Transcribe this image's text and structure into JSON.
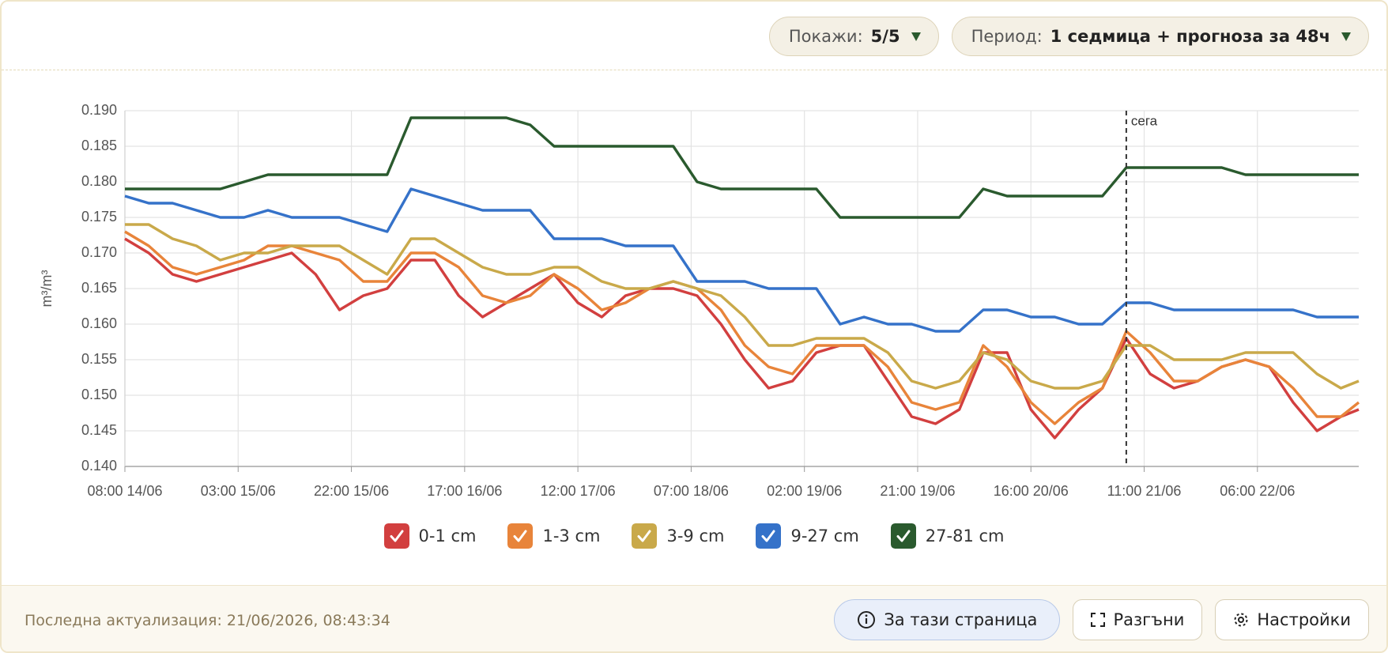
{
  "controls": {
    "show_label": "Покажи:",
    "show_value": "5/5",
    "period_label": "Период:",
    "period_value": "1 седмица + прогноза за 48ч"
  },
  "chart_data": {
    "type": "line",
    "ylabel": "m³/m³",
    "x": [
      0,
      4,
      8,
      12,
      16,
      20,
      24,
      28,
      32,
      36,
      40,
      44,
      48,
      52,
      56,
      60,
      64,
      68,
      72,
      76,
      80,
      84,
      88,
      92,
      96,
      100,
      104,
      108,
      112,
      116,
      120,
      124,
      128,
      132,
      136,
      140,
      144,
      148,
      152,
      156,
      160,
      164,
      168,
      172,
      176,
      180,
      184,
      188,
      192,
      196,
      200,
      204,
      207
    ],
    "xlim": [
      0,
      207
    ],
    "xticks": [
      {
        "value": 0,
        "label": "08:00 14/06"
      },
      {
        "value": 19,
        "label": "03:00 15/06"
      },
      {
        "value": 38,
        "label": "22:00 15/06"
      },
      {
        "value": 57,
        "label": "17:00 16/06"
      },
      {
        "value": 76,
        "label": "12:00 17/06"
      },
      {
        "value": 95,
        "label": "07:00 18/06"
      },
      {
        "value": 114,
        "label": "02:00 19/06"
      },
      {
        "value": 133,
        "label": "21:00 19/06"
      },
      {
        "value": 152,
        "label": "16:00 20/06"
      },
      {
        "value": 171,
        "label": "11:00 21/06"
      },
      {
        "value": 190,
        "label": "06:00 22/06"
      }
    ],
    "ylim": [
      0.14,
      0.19
    ],
    "yticks": [
      {
        "value": 0.14,
        "label": "0.140"
      },
      {
        "value": 0.145,
        "label": "0.145"
      },
      {
        "value": 0.15,
        "label": "0.150"
      },
      {
        "value": 0.155,
        "label": "0.155"
      },
      {
        "value": 0.16,
        "label": "0.160"
      },
      {
        "value": 0.165,
        "label": "0.165"
      },
      {
        "value": 0.17,
        "label": "0.170"
      },
      {
        "value": 0.175,
        "label": "0.175"
      },
      {
        "value": 0.18,
        "label": "0.180"
      },
      {
        "value": 0.185,
        "label": "0.185"
      },
      {
        "value": 0.19,
        "label": "0.190"
      }
    ],
    "grid": true,
    "now_line": {
      "text": "сега",
      "x": 168
    },
    "series": [
      {
        "name": "0-1 cm",
        "color": "#d23f3f",
        "values": [
          0.172,
          0.17,
          0.167,
          0.166,
          0.167,
          0.168,
          0.169,
          0.17,
          0.167,
          0.162,
          0.164,
          0.165,
          0.169,
          0.169,
          0.164,
          0.161,
          0.163,
          0.165,
          0.167,
          0.163,
          0.161,
          0.164,
          0.165,
          0.165,
          0.164,
          0.16,
          0.155,
          0.151,
          0.152,
          0.156,
          0.157,
          0.157,
          0.152,
          0.147,
          0.146,
          0.148,
          0.156,
          0.156,
          0.148,
          0.144,
          0.148,
          0.151,
          0.158,
          0.153,
          0.151,
          0.152,
          0.154,
          0.155,
          0.154,
          0.149,
          0.145,
          0.147,
          0.148
        ]
      },
      {
        "name": "1-3 cm",
        "color": "#e8843a",
        "values": [
          0.173,
          0.171,
          0.168,
          0.167,
          0.168,
          0.169,
          0.171,
          0.171,
          0.17,
          0.169,
          0.166,
          0.166,
          0.17,
          0.17,
          0.168,
          0.164,
          0.163,
          0.164,
          0.167,
          0.165,
          0.162,
          0.163,
          0.165,
          0.166,
          0.165,
          0.162,
          0.157,
          0.154,
          0.153,
          0.157,
          0.157,
          0.157,
          0.154,
          0.149,
          0.148,
          0.149,
          0.157,
          0.154,
          0.149,
          0.146,
          0.149,
          0.151,
          0.159,
          0.156,
          0.152,
          0.152,
          0.154,
          0.155,
          0.154,
          0.151,
          0.147,
          0.147,
          0.149
        ]
      },
      {
        "name": "3-9 cm",
        "color": "#c9a94a",
        "values": [
          0.174,
          0.174,
          0.172,
          0.171,
          0.169,
          0.17,
          0.17,
          0.171,
          0.171,
          0.171,
          0.169,
          0.167,
          0.172,
          0.172,
          0.17,
          0.168,
          0.167,
          0.167,
          0.168,
          0.168,
          0.166,
          0.165,
          0.165,
          0.166,
          0.165,
          0.164,
          0.161,
          0.157,
          0.157,
          0.158,
          0.158,
          0.158,
          0.156,
          0.152,
          0.151,
          0.152,
          0.156,
          0.155,
          0.152,
          0.151,
          0.151,
          0.152,
          0.157,
          0.157,
          0.155,
          0.155,
          0.155,
          0.156,
          0.156,
          0.156,
          0.153,
          0.151,
          0.152
        ]
      },
      {
        "name": "9-27 cm",
        "color": "#3572c9",
        "values": [
          0.178,
          0.177,
          0.177,
          0.176,
          0.175,
          0.175,
          0.176,
          0.175,
          0.175,
          0.175,
          0.174,
          0.173,
          0.179,
          0.178,
          0.177,
          0.176,
          0.176,
          0.176,
          0.172,
          0.172,
          0.172,
          0.171,
          0.171,
          0.171,
          0.166,
          0.166,
          0.166,
          0.165,
          0.165,
          0.165,
          0.16,
          0.161,
          0.16,
          0.16,
          0.159,
          0.159,
          0.162,
          0.162,
          0.161,
          0.161,
          0.16,
          0.16,
          0.163,
          0.163,
          0.162,
          0.162,
          0.162,
          0.162,
          0.162,
          0.162,
          0.161,
          0.161,
          0.161
        ]
      },
      {
        "name": "27-81 cm",
        "color": "#2a5a2e",
        "values": [
          0.179,
          0.179,
          0.179,
          0.179,
          0.179,
          0.18,
          0.181,
          0.181,
          0.181,
          0.181,
          0.181,
          0.181,
          0.189,
          0.189,
          0.189,
          0.189,
          0.189,
          0.188,
          0.185,
          0.185,
          0.185,
          0.185,
          0.185,
          0.185,
          0.18,
          0.179,
          0.179,
          0.179,
          0.179,
          0.179,
          0.175,
          0.175,
          0.175,
          0.175,
          0.175,
          0.175,
          0.179,
          0.178,
          0.178,
          0.178,
          0.178,
          0.178,
          0.182,
          0.182,
          0.182,
          0.182,
          0.182,
          0.181,
          0.181,
          0.181,
          0.181,
          0.181,
          0.181
        ]
      }
    ]
  },
  "footer": {
    "updated": "Последна актуализация: 21/06/2026, 08:43:34",
    "about": "За тази страница",
    "expand": "Разгъни",
    "settings": "Настройки"
  }
}
